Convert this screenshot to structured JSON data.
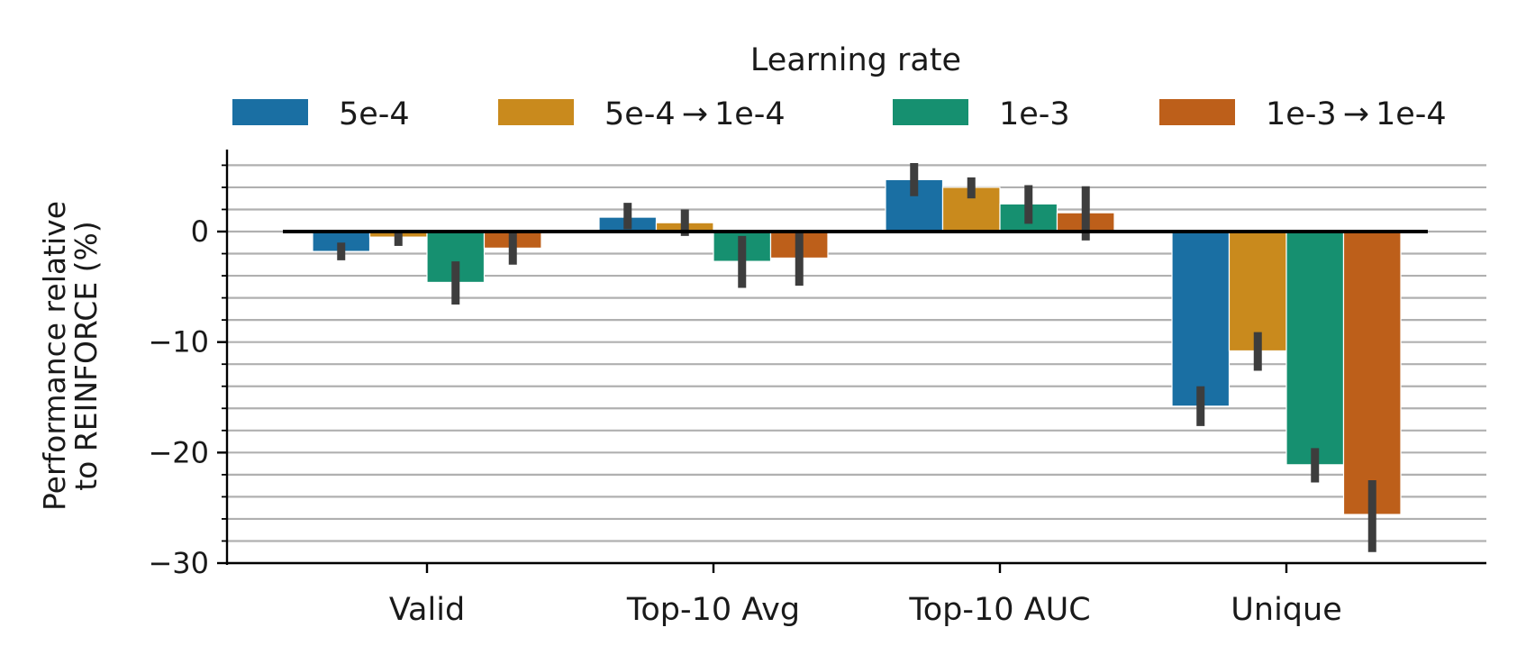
{
  "chart_data": {
    "type": "bar",
    "title": "",
    "xlabel": "",
    "ylabel": [
      "Performance relative",
      "to REINFORCE (%)"
    ],
    "ylim": [
      -30,
      7
    ],
    "yticks": [
      -30,
      -20,
      -10,
      0
    ],
    "ytick_labels": [
      "−30",
      "−20",
      "−10",
      "0"
    ],
    "grid_step": 2,
    "legend": {
      "title": "Learning rate",
      "position": "top-center"
    },
    "categories": [
      "Valid",
      "Top-10 Avg",
      "Top-10 AUC",
      "Unique"
    ],
    "series": [
      {
        "name": "5e-4",
        "color": "#1a6fa3",
        "values": [
          -1.8,
          1.3,
          4.7,
          -15.8
        ],
        "err_low": [
          -2.6,
          0.2,
          3.2,
          -17.6
        ],
        "err_high": [
          -1.0,
          2.6,
          6.2,
          -14.0
        ]
      },
      {
        "name": "5e-4 → 1e-4",
        "color": "#c98a1d",
        "values": [
          -0.5,
          0.8,
          4.0,
          -10.8
        ],
        "err_low": [
          -1.3,
          -0.4,
          3.0,
          -12.6
        ],
        "err_high": [
          0.0,
          2.0,
          4.9,
          -9.1
        ]
      },
      {
        "name": "1e-3",
        "color": "#169070",
        "values": [
          -4.6,
          -2.7,
          2.5,
          -21.1
        ],
        "err_low": [
          -6.6,
          -5.1,
          0.7,
          -22.7
        ],
        "err_high": [
          -2.7,
          -0.4,
          4.2,
          -19.6
        ]
      },
      {
        "name": "1e-3 → 1e-4",
        "color": "#bd5f1a",
        "values": [
          -1.5,
          -2.4,
          1.7,
          -25.6
        ],
        "err_low": [
          -3.0,
          -4.9,
          -0.8,
          -29.0
        ],
        "err_high": [
          0.0,
          0.0,
          4.1,
          -22.5
        ]
      }
    ]
  }
}
